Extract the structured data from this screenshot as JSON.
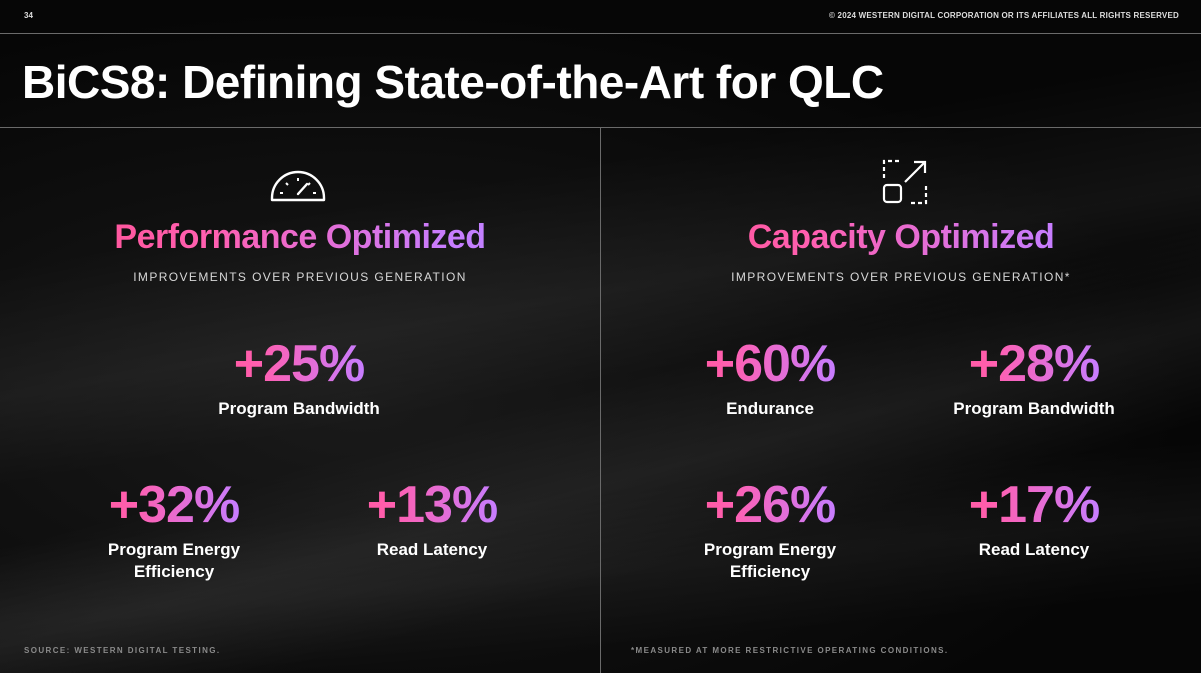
{
  "header": {
    "page_number": "34",
    "copyright": "© 2024 WESTERN DIGITAL CORPORATION OR ITS AFFILIATES  ALL RIGHTS RESERVED"
  },
  "title": "BiCS8: Defining State-of-the-Art for QLC",
  "left": {
    "icon": "speedometer-icon",
    "heading": "Performance Optimized",
    "subheading": "IMPROVEMENTS OVER PREVIOUS GENERATION",
    "stats": [
      {
        "value": "+25%",
        "label": "Program Bandwidth"
      },
      {
        "value": "+32%",
        "label": "Program Energy\nEfficiency"
      },
      {
        "value": "+13%",
        "label": "Read Latency"
      }
    ],
    "footnote": "SOURCE: WESTERN DIGITAL TESTING."
  },
  "right": {
    "icon": "expand-arrow-icon",
    "heading": "Capacity Optimized",
    "subheading": "IMPROVEMENTS OVER PREVIOUS GENERATION*",
    "stats": [
      {
        "value": "+60%",
        "label": "Endurance"
      },
      {
        "value": "+28%",
        "label": "Program Bandwidth"
      },
      {
        "value": "+26%",
        "label": "Program Energy\nEfficiency"
      },
      {
        "value": "+17%",
        "label": "Read Latency"
      }
    ],
    "footnote": "*MEASURED AT MORE RESTRICTIVE OPERATING CONDITIONS."
  },
  "colors": {
    "background": "#050505",
    "gradient_start": "#ff4f8b",
    "gradient_end": "#b48cff",
    "rule": "#6a6a6a"
  }
}
